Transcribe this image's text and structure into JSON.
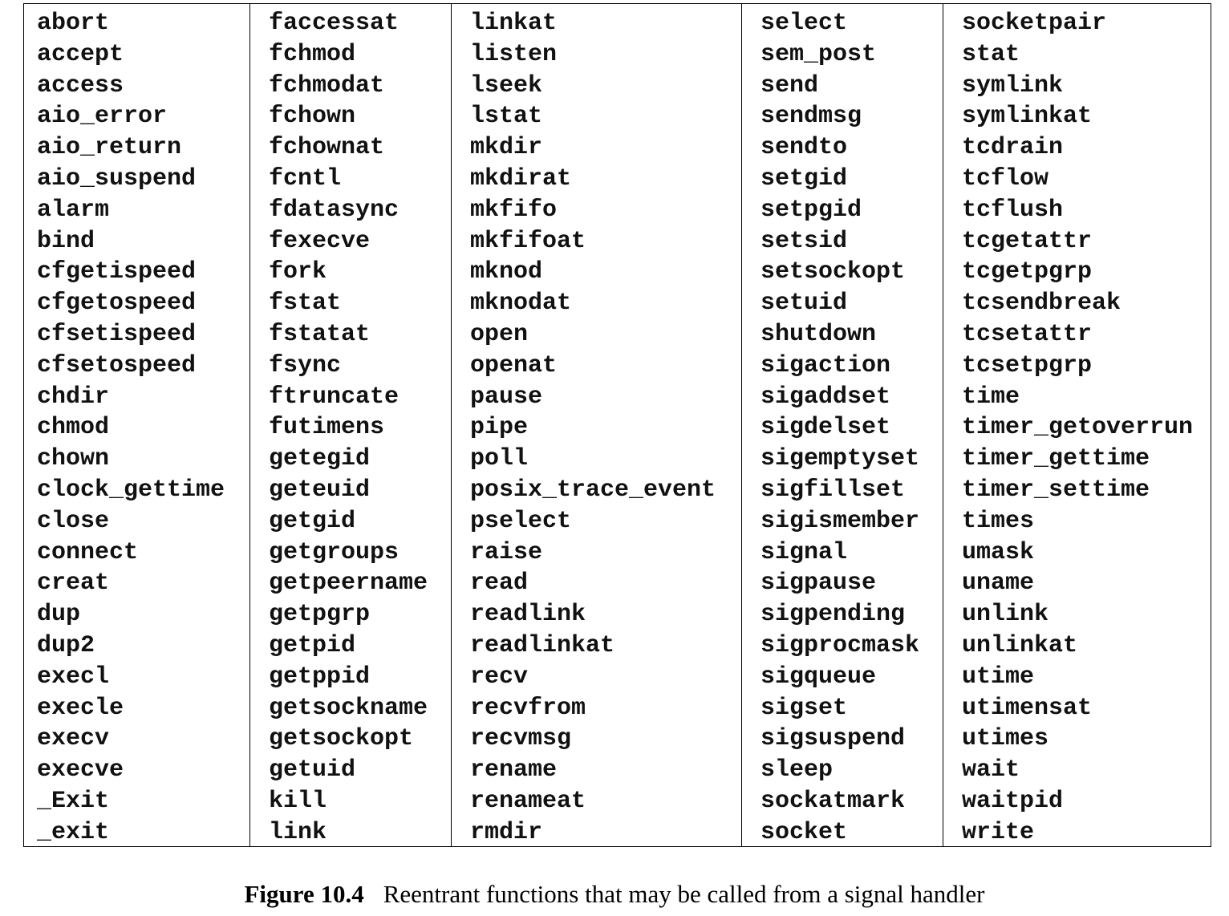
{
  "columns": [
    [
      "abort",
      "accept",
      "access",
      "aio_error",
      "aio_return",
      "aio_suspend",
      "alarm",
      "bind",
      "cfgetispeed",
      "cfgetospeed",
      "cfsetispeed",
      "cfsetospeed",
      "chdir",
      "chmod",
      "chown",
      "clock_gettime",
      "close",
      "connect",
      "creat",
      "dup",
      "dup2",
      "execl",
      "execle",
      "execv",
      "execve",
      "_Exit",
      "_exit"
    ],
    [
      "faccessat",
      "fchmod",
      "fchmodat",
      "fchown",
      "fchownat",
      "fcntl",
      "fdatasync",
      "fexecve",
      "fork",
      "fstat",
      "fstatat",
      "fsync",
      "ftruncate",
      "futimens",
      "getegid",
      "geteuid",
      "getgid",
      "getgroups",
      "getpeername",
      "getpgrp",
      "getpid",
      "getppid",
      "getsockname",
      "getsockopt",
      "getuid",
      "kill",
      "link"
    ],
    [
      "linkat",
      "listen",
      "lseek",
      "lstat",
      "mkdir",
      "mkdirat",
      "mkfifo",
      "mkfifoat",
      "mknod",
      "mknodat",
      "open",
      "openat",
      "pause",
      "pipe",
      "poll",
      "posix_trace_event",
      "pselect",
      "raise",
      "read",
      "readlink",
      "readlinkat",
      "recv",
      "recvfrom",
      "recvmsg",
      "rename",
      "renameat",
      "rmdir"
    ],
    [
      "select",
      "sem_post",
      "send",
      "sendmsg",
      "sendto",
      "setgid",
      "setpgid",
      "setsid",
      "setsockopt",
      "setuid",
      "shutdown",
      "sigaction",
      "sigaddset",
      "sigdelset",
      "sigemptyset",
      "sigfillset",
      "sigismember",
      "signal",
      "sigpause",
      "sigpending",
      "sigprocmask",
      "sigqueue",
      "sigset",
      "sigsuspend",
      "sleep",
      "sockatmark",
      "socket"
    ],
    [
      "socketpair",
      "stat",
      "symlink",
      "symlinkat",
      "tcdrain",
      "tcflow",
      "tcflush",
      "tcgetattr",
      "tcgetpgrp",
      "tcsendbreak",
      "tcsetattr",
      "tcsetpgrp",
      "time",
      "timer_getoverrun",
      "timer_gettime",
      "timer_settime",
      "times",
      "umask",
      "uname",
      "unlink",
      "unlinkat",
      "utime",
      "utimensat",
      "utimes",
      "wait",
      "waitpid",
      "write"
    ]
  ],
  "caption": {
    "figure_number": "Figure 10.4",
    "text": "Reentrant functions that may be called from a signal handler"
  }
}
